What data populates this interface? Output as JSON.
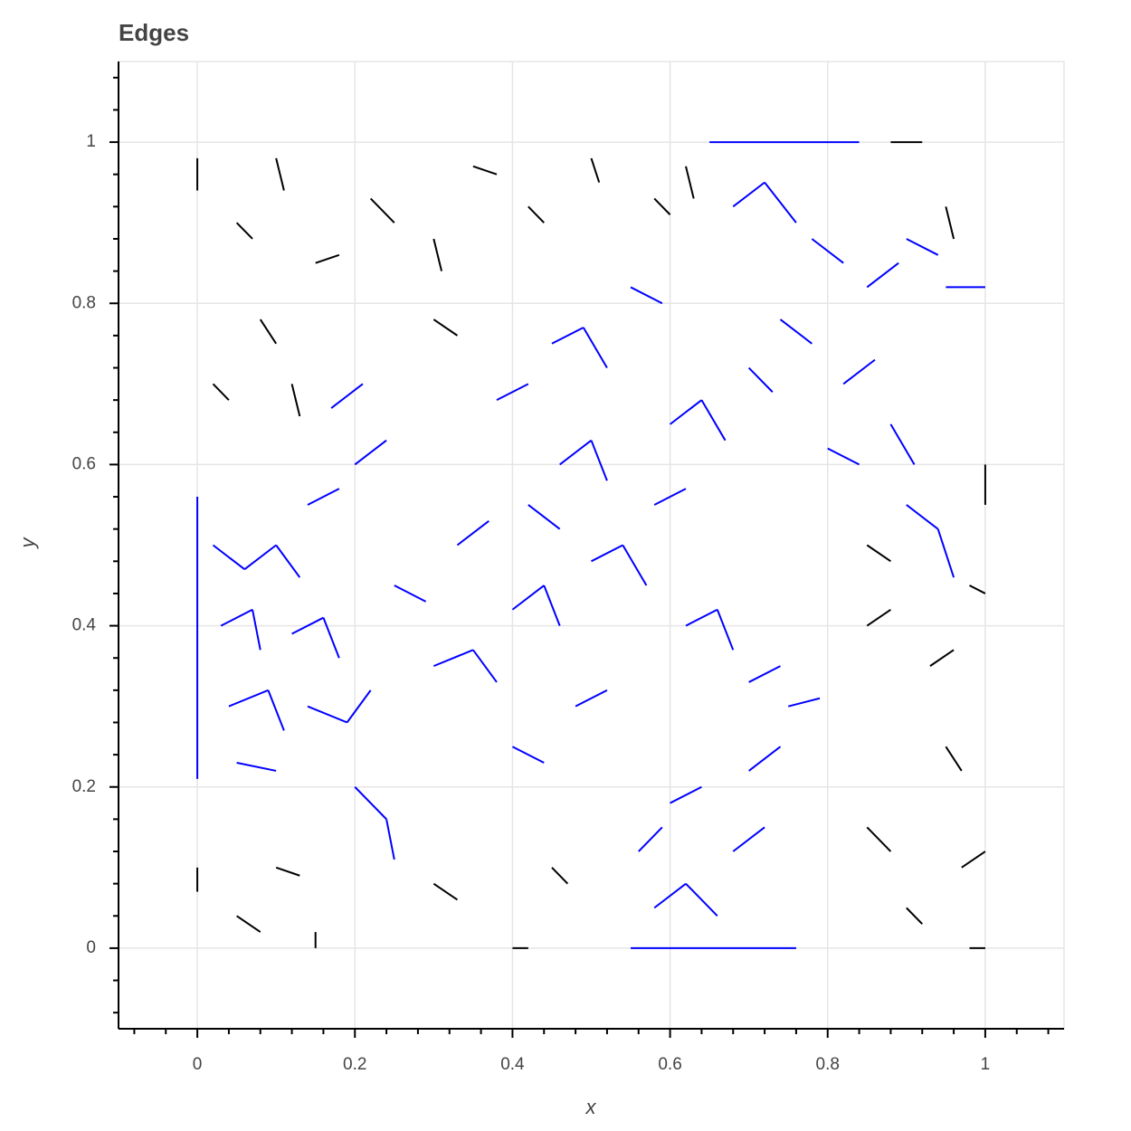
{
  "chart_data": {
    "type": "segments",
    "title": "Edges",
    "x_label": "x",
    "y_label": "y",
    "xlim": [
      -0.1,
      1.1
    ],
    "ylim": [
      -0.1,
      1.1
    ],
    "xticks": [
      0,
      0.2,
      0.4,
      0.6,
      0.8,
      1
    ],
    "yticks": [
      0,
      0.2,
      0.4,
      0.6,
      0.8,
      1
    ],
    "xminorticks": [
      -0.08,
      -0.04,
      0.04,
      0.08,
      0.12,
      0.16,
      0.24,
      0.28,
      0.32,
      0.36,
      0.44,
      0.48,
      0.52,
      0.56,
      0.64,
      0.68,
      0.72,
      0.76,
      0.84,
      0.88,
      0.92,
      0.96,
      1.04,
      1.08
    ],
    "yminorticks": [
      -0.08,
      -0.04,
      0.04,
      0.08,
      0.12,
      0.16,
      0.24,
      0.28,
      0.32,
      0.36,
      0.44,
      0.48,
      0.52,
      0.56,
      0.64,
      0.68,
      0.72,
      0.76,
      0.84,
      0.88,
      0.92,
      0.96,
      1.04,
      1.08
    ],
    "grid": true,
    "series": [
      {
        "color": "#000000",
        "segments": [
          [
            0,
            0.94,
            0,
            0.98
          ],
          [
            0.05,
            0.9,
            0.07,
            0.88
          ],
          [
            0.1,
            0.98,
            0.11,
            0.94
          ],
          [
            0.15,
            0.85,
            0.18,
            0.86
          ],
          [
            0.22,
            0.93,
            0.25,
            0.9
          ],
          [
            0.3,
            0.88,
            0.31,
            0.84
          ],
          [
            0.35,
            0.97,
            0.38,
            0.96
          ],
          [
            0.42,
            0.92,
            0.44,
            0.9
          ],
          [
            0.5,
            0.98,
            0.51,
            0.95
          ],
          [
            0.58,
            0.93,
            0.6,
            0.91
          ],
          [
            0.62,
            0.97,
            0.63,
            0.93
          ],
          [
            0.88,
            1,
            0.92,
            1
          ],
          [
            0.95,
            0.92,
            0.96,
            0.88
          ],
          [
            0.02,
            0.7,
            0.04,
            0.68
          ],
          [
            0.08,
            0.78,
            0.1,
            0.75
          ],
          [
            0.12,
            0.7,
            0.13,
            0.66
          ],
          [
            0.3,
            0.78,
            0.33,
            0.76
          ],
          [
            0,
            0.1,
            0,
            0.07
          ],
          [
            0.05,
            0.04,
            0.08,
            0.02
          ],
          [
            0.1,
            0.1,
            0.13,
            0.09
          ],
          [
            0.15,
            0.02,
            0.15,
            0
          ],
          [
            0.3,
            0.08,
            0.33,
            0.06
          ],
          [
            0.4,
            0,
            0.42,
            0
          ],
          [
            0.45,
            0.1,
            0.47,
            0.08
          ],
          [
            0.85,
            0.15,
            0.88,
            0.12
          ],
          [
            0.9,
            0.05,
            0.92,
            0.03
          ],
          [
            0.97,
            0.1,
            1,
            0.12
          ],
          [
            0.98,
            0,
            1,
            0
          ],
          [
            0.85,
            0.4,
            0.88,
            0.42
          ],
          [
            0.93,
            0.35,
            0.96,
            0.37
          ],
          [
            0.98,
            0.45,
            1,
            0.44
          ],
          [
            0.85,
            0.5,
            0.88,
            0.48
          ],
          [
            0.95,
            0.25,
            0.97,
            0.22
          ],
          [
            1,
            0.6,
            1,
            0.55
          ]
        ]
      },
      {
        "color": "#0000ff",
        "segments": [
          [
            0,
            0.21,
            0,
            0.56
          ],
          [
            0.02,
            0.5,
            0.06,
            0.47
          ],
          [
            0.06,
            0.47,
            0.1,
            0.5
          ],
          [
            0.1,
            0.5,
            0.13,
            0.46
          ],
          [
            0.03,
            0.4,
            0.07,
            0.42
          ],
          [
            0.07,
            0.42,
            0.08,
            0.37
          ],
          [
            0.12,
            0.39,
            0.16,
            0.41
          ],
          [
            0.16,
            0.41,
            0.18,
            0.36
          ],
          [
            0.04,
            0.3,
            0.09,
            0.32
          ],
          [
            0.09,
            0.32,
            0.11,
            0.27
          ],
          [
            0.14,
            0.3,
            0.19,
            0.28
          ],
          [
            0.19,
            0.28,
            0.22,
            0.32
          ],
          [
            0.05,
            0.23,
            0.1,
            0.22
          ],
          [
            0.2,
            0.2,
            0.24,
            0.16
          ],
          [
            0.24,
            0.16,
            0.25,
            0.11
          ],
          [
            0.25,
            0.45,
            0.29,
            0.43
          ],
          [
            0.2,
            0.6,
            0.24,
            0.63
          ],
          [
            0.17,
            0.67,
            0.21,
            0.7
          ],
          [
            0.14,
            0.55,
            0.18,
            0.57
          ],
          [
            0.3,
            0.35,
            0.35,
            0.37
          ],
          [
            0.35,
            0.37,
            0.38,
            0.33
          ],
          [
            0.4,
            0.42,
            0.44,
            0.45
          ],
          [
            0.44,
            0.45,
            0.46,
            0.4
          ],
          [
            0.33,
            0.5,
            0.37,
            0.53
          ],
          [
            0.42,
            0.55,
            0.46,
            0.52
          ],
          [
            0.46,
            0.6,
            0.5,
            0.63
          ],
          [
            0.5,
            0.63,
            0.52,
            0.58
          ],
          [
            0.38,
            0.68,
            0.42,
            0.7
          ],
          [
            0.45,
            0.75,
            0.49,
            0.77
          ],
          [
            0.49,
            0.77,
            0.52,
            0.72
          ],
          [
            0.55,
            0.82,
            0.59,
            0.8
          ],
          [
            0.5,
            0.48,
            0.54,
            0.5
          ],
          [
            0.54,
            0.5,
            0.57,
            0.45
          ],
          [
            0.58,
            0.55,
            0.62,
            0.57
          ],
          [
            0.6,
            0.65,
            0.64,
            0.68
          ],
          [
            0.64,
            0.68,
            0.67,
            0.63
          ],
          [
            0.62,
            0.4,
            0.66,
            0.42
          ],
          [
            0.66,
            0.42,
            0.68,
            0.37
          ],
          [
            0.7,
            0.33,
            0.74,
            0.35
          ],
          [
            0.75,
            0.3,
            0.79,
            0.31
          ],
          [
            0.48,
            0.3,
            0.52,
            0.32
          ],
          [
            0.4,
            0.25,
            0.44,
            0.23
          ],
          [
            0.55,
            0,
            0.76,
            0
          ],
          [
            0.58,
            0.05,
            0.62,
            0.08
          ],
          [
            0.62,
            0.08,
            0.66,
            0.04
          ],
          [
            0.68,
            0.12,
            0.72,
            0.15
          ],
          [
            0.6,
            0.18,
            0.64,
            0.2
          ],
          [
            0.7,
            0.22,
            0.74,
            0.25
          ],
          [
            0.56,
            0.12,
            0.59,
            0.15
          ],
          [
            0.65,
            1,
            0.84,
            1
          ],
          [
            0.68,
            0.92,
            0.72,
            0.95
          ],
          [
            0.72,
            0.95,
            0.76,
            0.9
          ],
          [
            0.78,
            0.88,
            0.82,
            0.85
          ],
          [
            0.85,
            0.82,
            0.89,
            0.85
          ],
          [
            0.9,
            0.88,
            0.94,
            0.86
          ],
          [
            0.95,
            0.82,
            1,
            0.82
          ],
          [
            0.74,
            0.78,
            0.78,
            0.75
          ],
          [
            0.82,
            0.7,
            0.86,
            0.73
          ],
          [
            0.88,
            0.65,
            0.91,
            0.6
          ],
          [
            0.9,
            0.55,
            0.94,
            0.52
          ],
          [
            0.94,
            0.52,
            0.96,
            0.46
          ],
          [
            0.8,
            0.62,
            0.84,
            0.6
          ],
          [
            0.7,
            0.72,
            0.73,
            0.69
          ]
        ]
      }
    ]
  }
}
